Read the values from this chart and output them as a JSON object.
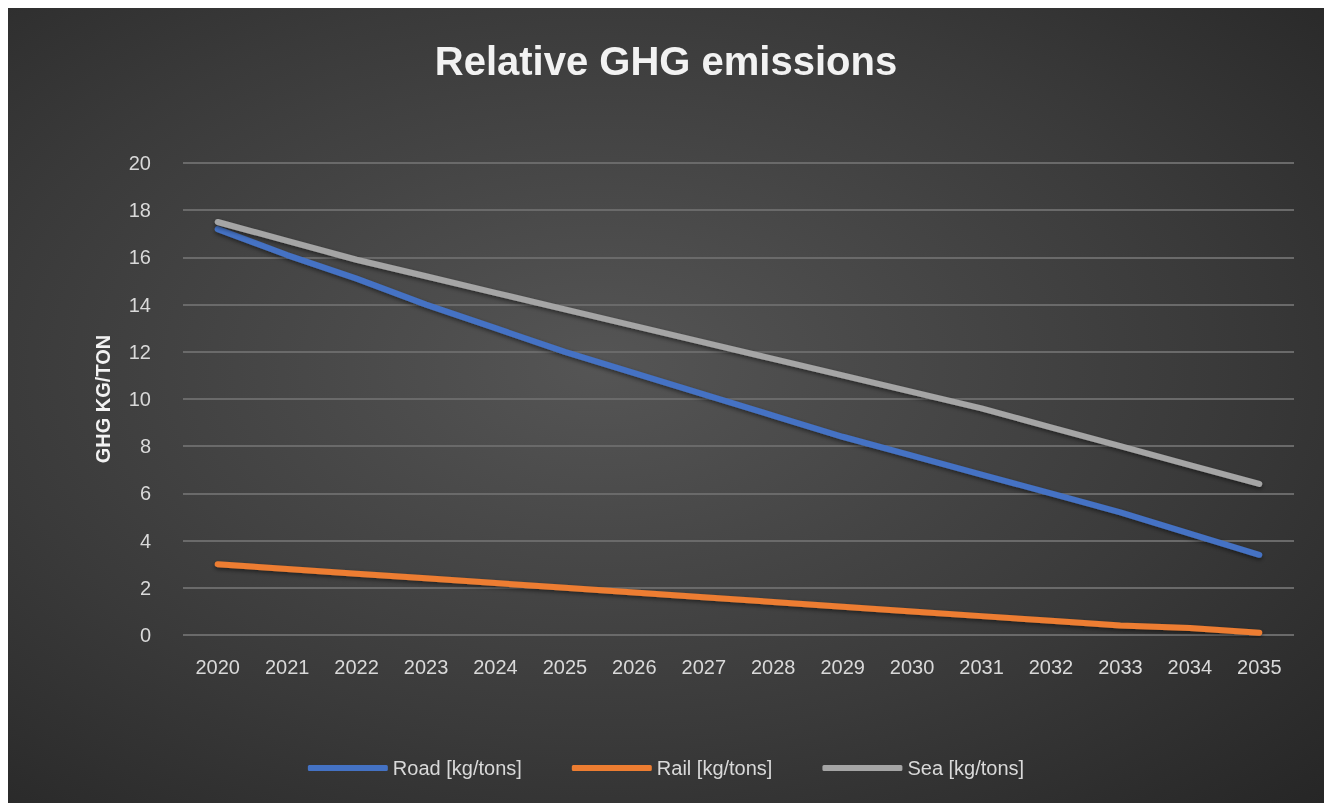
{
  "chart_data": {
    "type": "line",
    "title": "Relative GHG emissions",
    "ylabel": "GHG KG/TON",
    "categories": [
      "2020",
      "2021",
      "2022",
      "2023",
      "2024",
      "2025",
      "2026",
      "2027",
      "2028",
      "2029",
      "2030",
      "2031",
      "2032",
      "2033",
      "2034",
      "2035"
    ],
    "series": [
      {
        "name": "Road [kg/tons]",
        "color": "#4472c4",
        "values": [
          17.2,
          16.1,
          15.1,
          14.0,
          13.0,
          12.0,
          11.1,
          10.2,
          9.3,
          8.4,
          7.6,
          6.8,
          6.0,
          5.2,
          4.3,
          3.4
        ]
      },
      {
        "name": "Rail [kg/tons]",
        "color": "#ed7d31",
        "values": [
          3.0,
          2.8,
          2.6,
          2.4,
          2.2,
          2.0,
          1.8,
          1.6,
          1.4,
          1.2,
          1.0,
          0.8,
          0.6,
          0.4,
          0.3,
          0.1
        ]
      },
      {
        "name": "Sea [kg/tons]",
        "color": "#a5a5a5",
        "values": [
          17.5,
          16.7,
          15.9,
          15.2,
          14.5,
          13.8,
          13.1,
          12.4,
          11.7,
          11.0,
          10.3,
          9.6,
          8.8,
          8.0,
          7.2,
          6.4
        ]
      }
    ],
    "ylim": [
      0,
      20
    ],
    "yticks": [
      0,
      2,
      4,
      6,
      8,
      10,
      12,
      14,
      16,
      18,
      20
    ],
    "grid": "y",
    "legend": "bottom",
    "marker": "none",
    "line_style": "solid"
  }
}
